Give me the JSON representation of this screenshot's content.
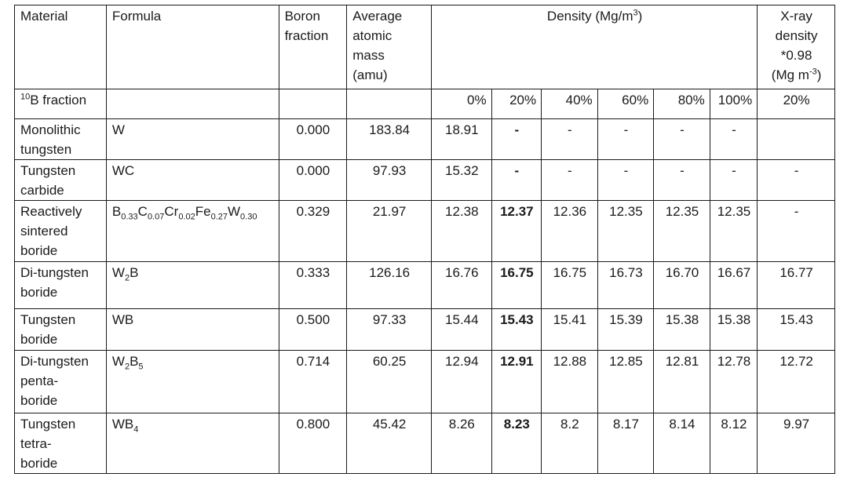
{
  "headers": {
    "material": "Material",
    "formula": "Formula",
    "boron_fraction": "Boron\nfraction",
    "avg_mass": "Average\natomic\nmass\n(amu)",
    "density_pre": "Density (Mg/m",
    "density_sup": "3",
    "density_post": ")",
    "xray_pre": "X-ray\ndensity\n*0.98\n(Mg m",
    "xray_sup": "-3",
    "xray_post": ")"
  },
  "subheader": {
    "b10_sup": "10",
    "b10_text": "B fraction",
    "density_cols": [
      "0%",
      "20%",
      "40%",
      "60%",
      "80%",
      "100%"
    ],
    "xray_col": "20%"
  },
  "rows": [
    {
      "material": "Monolithic\ntungsten",
      "formula": [
        {
          "t": "W"
        }
      ],
      "boron_fraction": "0.000",
      "avg_mass": "183.84",
      "d": [
        "18.91",
        "-",
        "-",
        "-",
        "-",
        "-"
      ],
      "xray": ""
    },
    {
      "material": "Tungsten\ncarbide",
      "formula": [
        {
          "t": "WC"
        }
      ],
      "boron_fraction": "0.000",
      "avg_mass": "97.93",
      "d": [
        "15.32",
        "-",
        "-",
        "-",
        "-",
        "-"
      ],
      "xray": "-"
    },
    {
      "material": "Reactively\nsintered\nboride",
      "formula": [
        {
          "t": "B"
        },
        {
          "s": "0.33"
        },
        {
          "t": "C"
        },
        {
          "s": "0.07"
        },
        {
          "t": "Cr"
        },
        {
          "s": "0.02"
        },
        {
          "t": "Fe"
        },
        {
          "s": "0.27"
        },
        {
          "t": "W"
        },
        {
          "s": "0.30"
        }
      ],
      "boron_fraction": "0.329",
      "avg_mass": "21.97",
      "d": [
        "12.38",
        "12.37",
        "12.36",
        "12.35",
        "12.35",
        "12.35"
      ],
      "xray": "-"
    },
    {
      "material": "Di-tungsten\nboride",
      "formula": [
        {
          "t": "W"
        },
        {
          "s": "2"
        },
        {
          "t": "B"
        }
      ],
      "boron_fraction": "0.333",
      "avg_mass": "126.16",
      "d": [
        "16.76",
        "16.75",
        "16.75",
        "16.73",
        "16.70",
        "16.67"
      ],
      "xray": "16.77"
    },
    {
      "material": "Tungsten\nboride",
      "formula": [
        {
          "t": "WB"
        }
      ],
      "boron_fraction": "0.500",
      "avg_mass": "97.33",
      "d": [
        "15.44",
        "15.43",
        "15.41",
        "15.39",
        "15.38",
        "15.38"
      ],
      "xray": "15.43"
    },
    {
      "material": "Di-tungsten\npenta-\nboride",
      "formula": [
        {
          "t": "W"
        },
        {
          "s": "2"
        },
        {
          "t": "B"
        },
        {
          "s": "5"
        }
      ],
      "boron_fraction": "0.714",
      "avg_mass": "60.25",
      "d": [
        "12.94",
        "12.91",
        "12.88",
        "12.85",
        "12.81",
        "12.78"
      ],
      "xray": "12.72"
    },
    {
      "material": "Tungsten\ntetra-\nboride",
      "formula": [
        {
          "t": "WB"
        },
        {
          "s": "4"
        }
      ],
      "boron_fraction": "0.800",
      "avg_mass": "45.42",
      "d": [
        "8.26",
        "8.23",
        "8.2",
        "8.17",
        "8.14",
        "8.12"
      ],
      "xray": "9.97"
    }
  ]
}
